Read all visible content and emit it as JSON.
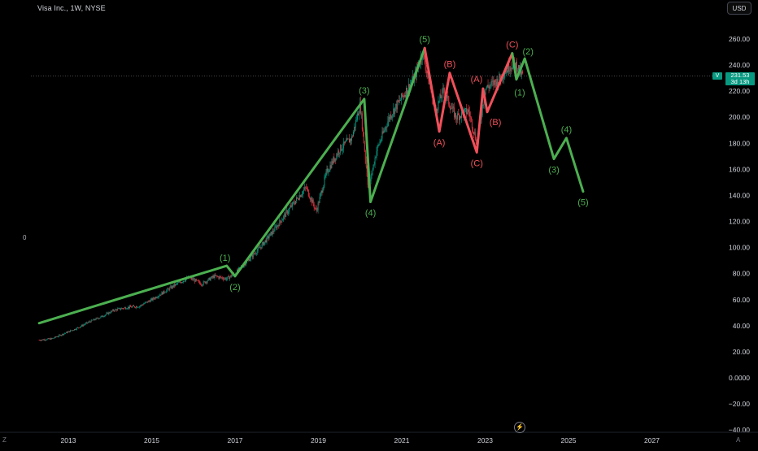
{
  "header": {
    "title": "Visa Inc., 1W, NYSE",
    "currency": "USD"
  },
  "left_label": "0",
  "corner_left": "Z",
  "corner_right": "A",
  "flash_icon": "lightning-icon",
  "colors": {
    "background": "#000000",
    "wave_primary": "#4caf50",
    "wave_corrective": "#f0505a",
    "candle_up": "#089981",
    "candle_down": "#f23645",
    "price_tag": "#089981",
    "axis_text": "#d1d4dc"
  },
  "price_tag": {
    "symbol": "V",
    "price": "231.53",
    "countdown": "3d 13h"
  },
  "chart_data": {
    "type": "line",
    "y_axis": {
      "ticks": [
        "260.00",
        "240.00",
        "220.00",
        "200.00",
        "180.00",
        "160.00",
        "140.00",
        "120.00",
        "100.00",
        "80.00",
        "60.00",
        "40.00",
        "20.00",
        "0.0000",
        "−20.00",
        "−40.00"
      ],
      "range": [
        -40,
        270
      ]
    },
    "x_axis": {
      "ticks": [
        "2013",
        "2015",
        "2017",
        "2019",
        "2021",
        "2023",
        "2025",
        "2027"
      ],
      "range": [
        2012.2,
        2028.5
      ]
    },
    "last_price": 231.53,
    "price_history": [
      [
        2012.3,
        29
      ],
      [
        2012.6,
        30
      ],
      [
        2012.9,
        34
      ],
      [
        2013.2,
        38
      ],
      [
        2013.5,
        43
      ],
      [
        2013.8,
        47
      ],
      [
        2014.1,
        52
      ],
      [
        2014.4,
        54
      ],
      [
        2014.7,
        55
      ],
      [
        2015.0,
        60
      ],
      [
        2015.3,
        66
      ],
      [
        2015.6,
        72
      ],
      [
        2015.9,
        77
      ],
      [
        2016.2,
        72
      ],
      [
        2016.5,
        78
      ],
      [
        2016.8,
        76
      ],
      [
        2017.0,
        80
      ],
      [
        2017.3,
        90
      ],
      [
        2017.6,
        100
      ],
      [
        2017.9,
        112
      ],
      [
        2018.2,
        125
      ],
      [
        2018.5,
        138
      ],
      [
        2018.7,
        146
      ],
      [
        2018.95,
        128
      ],
      [
        2019.2,
        158
      ],
      [
        2019.5,
        175
      ],
      [
        2019.8,
        184
      ],
      [
        2020.0,
        210
      ],
      [
        2020.2,
        145
      ],
      [
        2020.4,
        175
      ],
      [
        2020.7,
        200
      ],
      [
        2021.0,
        215
      ],
      [
        2021.3,
        230
      ],
      [
        2021.5,
        250
      ],
      [
        2021.8,
        205
      ],
      [
        2022.0,
        220
      ],
      [
        2022.3,
        200
      ],
      [
        2022.6,
        205
      ],
      [
        2022.8,
        180
      ],
      [
        2023.0,
        222
      ],
      [
        2023.3,
        228
      ],
      [
        2023.6,
        240
      ],
      [
        2023.75,
        240
      ],
      [
        2023.9,
        231.5
      ]
    ],
    "series": [
      {
        "name": "",
        "color": "#4caf50",
        "points": [
          {
            "x": 2012.3,
            "y": 42,
            "label": ""
          },
          {
            "x": 2016.8,
            "y": 86,
            "label": "(1)"
          },
          {
            "x": 2017.0,
            "y": 78,
            "label": "(2)"
          },
          {
            "x": 2020.1,
            "y": 214,
            "label": "(3)"
          },
          {
            "x": 2020.25,
            "y": 135,
            "label": "(4)"
          },
          {
            "x": 2021.55,
            "y": 253,
            "label": "(5)"
          }
        ]
      },
      {
        "name": "",
        "color": "#f0505a",
        "points": [
          {
            "x": 2021.55,
            "y": 253,
            "label": ""
          },
          {
            "x": 2021.9,
            "y": 189,
            "label": "(A)"
          },
          {
            "x": 2022.15,
            "y": 234,
            "label": "(B)"
          },
          {
            "x": 2022.8,
            "y": 173,
            "label": "(C)"
          },
          {
            "x": 2022.95,
            "y": 222,
            "label": "(A)"
          },
          {
            "x": 2023.05,
            "y": 204,
            "label": "(B)"
          },
          {
            "x": 2023.65,
            "y": 249,
            "label": "(C)"
          }
        ]
      },
      {
        "name": "",
        "color": "#4caf50",
        "points": [
          {
            "x": 2023.65,
            "y": 249,
            "label": ""
          },
          {
            "x": 2023.75,
            "y": 229,
            "label": "(1)"
          },
          {
            "x": 2023.95,
            "y": 245,
            "label": "(2)"
          },
          {
            "x": 2024.65,
            "y": 168,
            "label": "(3)"
          },
          {
            "x": 2024.95,
            "y": 184,
            "label": "(4)"
          },
          {
            "x": 2025.35,
            "y": 143,
            "label": "(5)"
          }
        ]
      }
    ]
  }
}
